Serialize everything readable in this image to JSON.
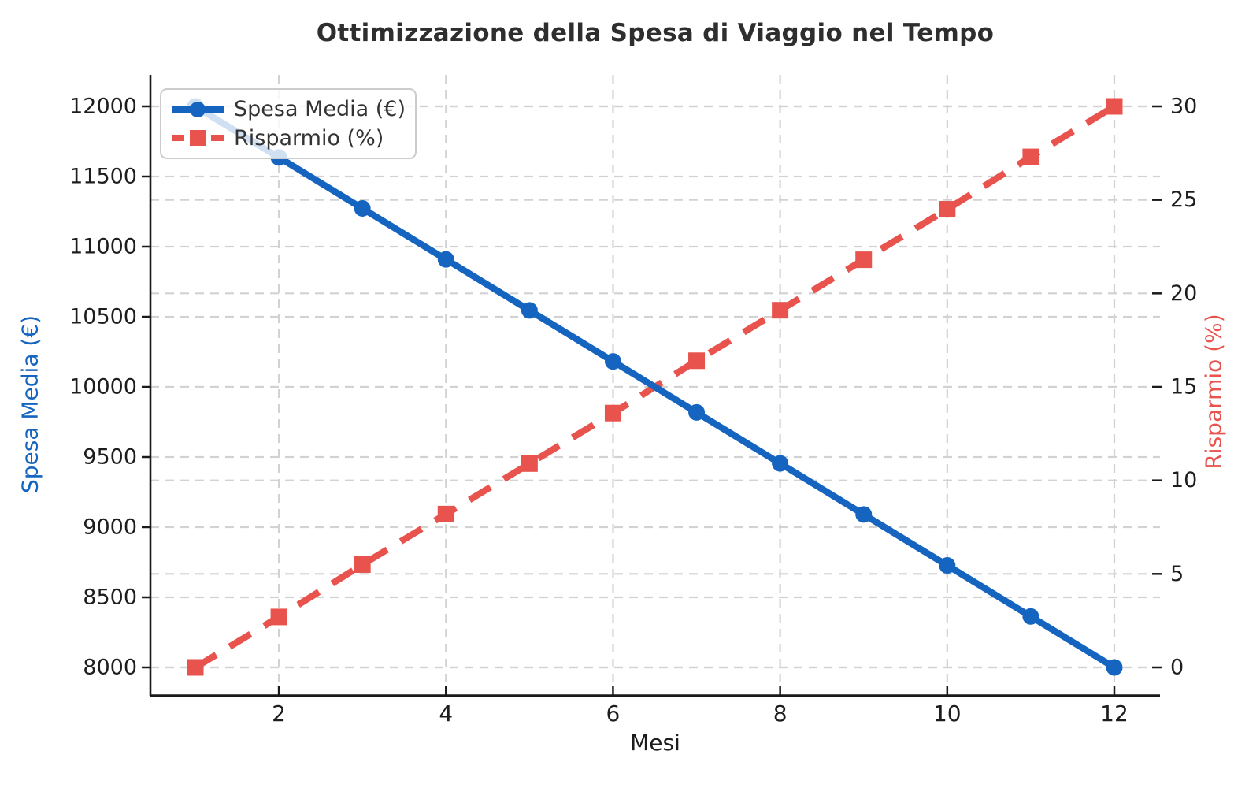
{
  "chart_data": {
    "type": "line",
    "title": "Ottimizzazione della Spesa di Viaggio nel Tempo",
    "xlabel": "Mesi",
    "ylabel_left": "Spesa Media (€)",
    "ylabel_right": "Risparmio (%)",
    "x": [
      1,
      2,
      3,
      4,
      5,
      6,
      7,
      8,
      9,
      10,
      11,
      12
    ],
    "series": [
      {
        "name": "Spesa Media (€)",
        "axis": "left",
        "color": "#1565c0",
        "line_style": "solid",
        "marker": "circle",
        "values": [
          12000.0,
          11636.4,
          11272.7,
          10909.1,
          10545.5,
          10181.8,
          9818.2,
          9454.5,
          9090.9,
          8727.3,
          8363.6,
          8000.0
        ]
      },
      {
        "name": "Risparmio (%)",
        "axis": "right",
        "color": "#e8534e",
        "line_style": "dashed",
        "marker": "square",
        "values": [
          0.0,
          2.7,
          5.5,
          8.2,
          10.9,
          13.6,
          16.4,
          19.1,
          21.8,
          24.5,
          27.3,
          30.0
        ]
      }
    ],
    "axes": {
      "xticks": [
        2,
        4,
        6,
        8,
        10,
        12
      ],
      "yticks_left": [
        8000,
        8500,
        9000,
        9500,
        10000,
        10500,
        11000,
        11500,
        12000
      ],
      "yticks_right": [
        0,
        5,
        10,
        15,
        20,
        25,
        30
      ],
      "xlim": [
        0.46,
        12.55
      ],
      "ylim_left": [
        7800,
        12225
      ],
      "ylim_right": [
        -1.5,
        31.7
      ],
      "grid": true,
      "grid_style": "dashed"
    },
    "legend": {
      "position": "upper left",
      "entries": [
        "Spesa Media (€)",
        "Risparmio (%)"
      ]
    },
    "colors": {
      "grid": "#d2d2d2",
      "spine": "#1a1a1a",
      "tick_label": "#1d1d1d",
      "title": "#2e2e2e",
      "legend_border": "#cccccc",
      "legend_text": "#333333"
    }
  }
}
